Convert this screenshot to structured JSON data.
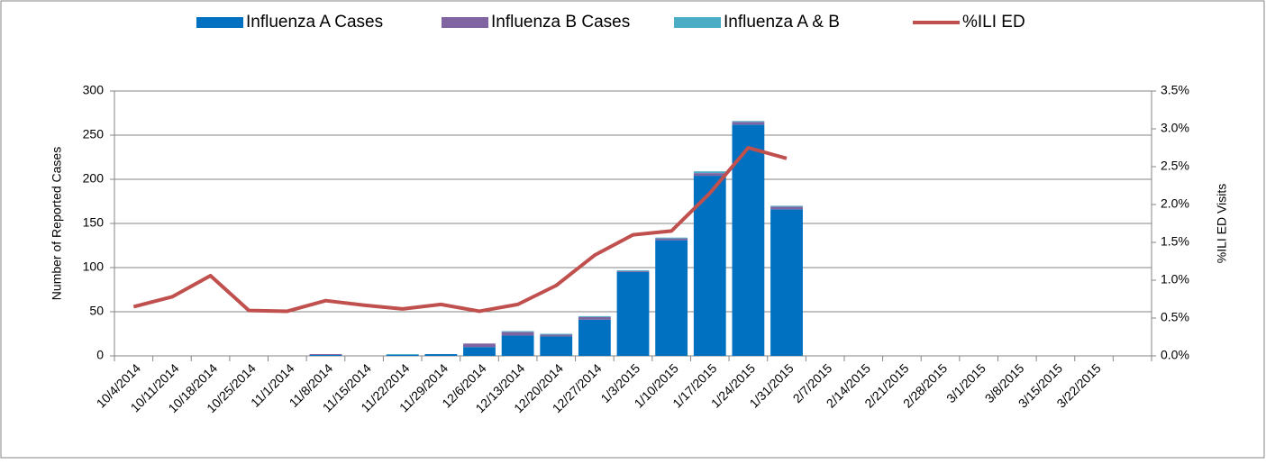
{
  "chart_data": {
    "type": "bar_line",
    "y_label": "Number of Reported Cases",
    "y2_label": "%ILI ED Visits",
    "categories": [
      "10/4/2014",
      "10/11/2014",
      "10/18/2014",
      "10/25/2014",
      "11/1/2014",
      "11/8/2014",
      "11/15/2014",
      "11/22/2014",
      "11/29/2014",
      "12/6/2014",
      "12/13/2014",
      "12/20/2014",
      "12/27/2014",
      "1/3/2015",
      "1/10/2015",
      "1/17/2015",
      "1/24/2015",
      "1/31/2015",
      "2/7/2015",
      "2/14/2015",
      "2/21/2015",
      "2/28/2015",
      "3/1/2015",
      "3/8/2015",
      "3/15/2015",
      "3/22/2015",
      null
    ],
    "series": [
      {
        "name": "Influenza A Cases",
        "type": "bar",
        "color": "#0070c0",
        "values": [
          0,
          0,
          0,
          0,
          0,
          1,
          0,
          1,
          2,
          10,
          23,
          22,
          41,
          95,
          131,
          204,
          262,
          166,
          null,
          null,
          null,
          null,
          null,
          null,
          null,
          null,
          null
        ]
      },
      {
        "name": "Influenza B Cases",
        "type": "bar",
        "color": "#8064a2",
        "values": [
          0,
          0,
          0,
          0,
          0,
          1,
          0,
          0,
          0,
          4,
          4,
          2,
          3,
          1,
          2,
          3,
          3,
          3,
          null,
          null,
          null,
          null,
          null,
          null,
          null,
          null,
          null
        ]
      },
      {
        "name": "Influenza A & B",
        "type": "bar",
        "color": "#4bacc6",
        "values": [
          0,
          0,
          0,
          0,
          0,
          0,
          0,
          1,
          0,
          0,
          1,
          1,
          1,
          1,
          1,
          2,
          1,
          1,
          null,
          null,
          null,
          null,
          null,
          null,
          null,
          null,
          null
        ]
      },
      {
        "name": "%ILI ED",
        "type": "line",
        "axis": "y2",
        "color": "#c0504d",
        "values": [
          0.65,
          0.78,
          1.06,
          0.6,
          0.59,
          0.73,
          0.67,
          0.62,
          0.68,
          0.59,
          0.68,
          0.93,
          1.33,
          1.6,
          1.65,
          2.15,
          2.75,
          2.61,
          null,
          null,
          null,
          null,
          null,
          null,
          null,
          null,
          null
        ]
      }
    ],
    "ylim": [
      0,
      300
    ],
    "yticks": [
      0,
      50,
      100,
      150,
      200,
      250,
      300
    ],
    "y2lim": [
      0,
      3.5
    ],
    "y2ticks": [
      {
        "value": 0,
        "label": "0.0%"
      },
      {
        "value": 0.5,
        "label": "0.5%"
      },
      {
        "value": 1,
        "label": "1.0%"
      },
      {
        "value": 1.5,
        "label": "1.5%"
      },
      {
        "value": 2,
        "label": "2.0%"
      },
      {
        "value": 2.5,
        "label": "2.5%"
      },
      {
        "value": 3,
        "label": "3.0%"
      },
      {
        "value": 3.5,
        "label": "3.5%"
      }
    ],
    "grid": true,
    "legend": "top",
    "stacked": true
  }
}
